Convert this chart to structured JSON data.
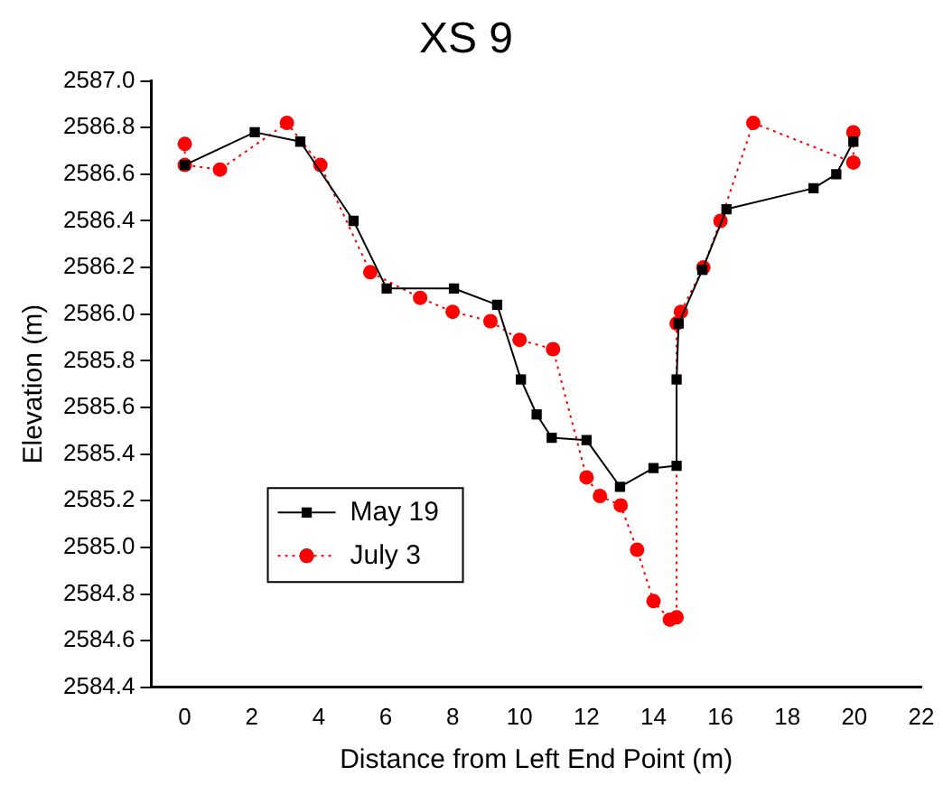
{
  "chart_data": {
    "type": "line",
    "title": "XS 9",
    "xlabel": "Distance from Left End Point (m)",
    "ylabel": "Elevation (m)",
    "xlim": [
      -1,
      22
    ],
    "xticks": [
      0,
      2,
      4,
      6,
      8,
      10,
      12,
      14,
      16,
      18,
      20,
      22
    ],
    "ylim": [
      2584.4,
      2587.0
    ],
    "yticks": [
      {
        "value": 2584.4,
        "label": "2584.4"
      },
      {
        "value": 2584.6,
        "label": "2584.6"
      },
      {
        "value": 2584.8,
        "label": "2584.8"
      },
      {
        "value": 2585.0,
        "label": "2585.0"
      },
      {
        "value": 2585.2,
        "label": "2585.2"
      },
      {
        "value": 2585.4,
        "label": "2585.4"
      },
      {
        "value": 2585.6,
        "label": "2585.6"
      },
      {
        "value": 2585.8,
        "label": "2585.8"
      },
      {
        "value": 2586.0,
        "label": "2586.0"
      },
      {
        "value": 2586.2,
        "label": "2586.2"
      },
      {
        "value": 2586.4,
        "label": "2586.4"
      },
      {
        "value": 2586.6,
        "label": "2586.6"
      },
      {
        "value": 2586.8,
        "label": "2586.8"
      },
      {
        "value": 2587.0,
        "label": "2587.0"
      }
    ],
    "grid": false,
    "legend": "bottom left",
    "series": [
      {
        "name": "May 19",
        "color": "#000000",
        "marker": "square",
        "line_style": "solid",
        "x": [
          0,
          2.09,
          3.45,
          5.04,
          6.03,
          8.04,
          9.33,
          10.04,
          10.51,
          10.96,
          12.0,
          13.0,
          14.0,
          14.69,
          14.69,
          14.75,
          15.46,
          16.18,
          18.78,
          19.46,
          19.97
        ],
        "values": [
          2586.64,
          2586.78,
          2586.74,
          2586.4,
          2586.11,
          2586.11,
          2586.04,
          2585.72,
          2585.57,
          2585.47,
          2585.46,
          2585.26,
          2585.34,
          2585.35,
          2585.72,
          2585.96,
          2586.19,
          2586.45,
          2586.54,
          2586.6,
          2586.74
        ]
      },
      {
        "name": "July 3",
        "color": "#ff0000",
        "marker": "circle",
        "line_style": "dotted",
        "x": [
          0,
          0,
          1.05,
          3.05,
          4.05,
          5.54,
          7.03,
          8.0,
          9.13,
          10.0,
          11.0,
          12.0,
          12.4,
          13.02,
          13.51,
          14.0,
          14.49,
          14.69,
          14.69,
          14.82,
          15.49,
          16.0,
          16.98,
          19.97,
          19.97
        ],
        "values": [
          2586.73,
          2586.64,
          2586.62,
          2586.82,
          2586.64,
          2586.18,
          2586.07,
          2586.01,
          2585.97,
          2585.89,
          2585.85,
          2585.3,
          2585.22,
          2585.18,
          2584.99,
          2584.77,
          2584.69,
          2584.7,
          2585.96,
          2586.01,
          2586.2,
          2586.4,
          2586.82,
          2586.65,
          2586.78
        ]
      }
    ]
  }
}
